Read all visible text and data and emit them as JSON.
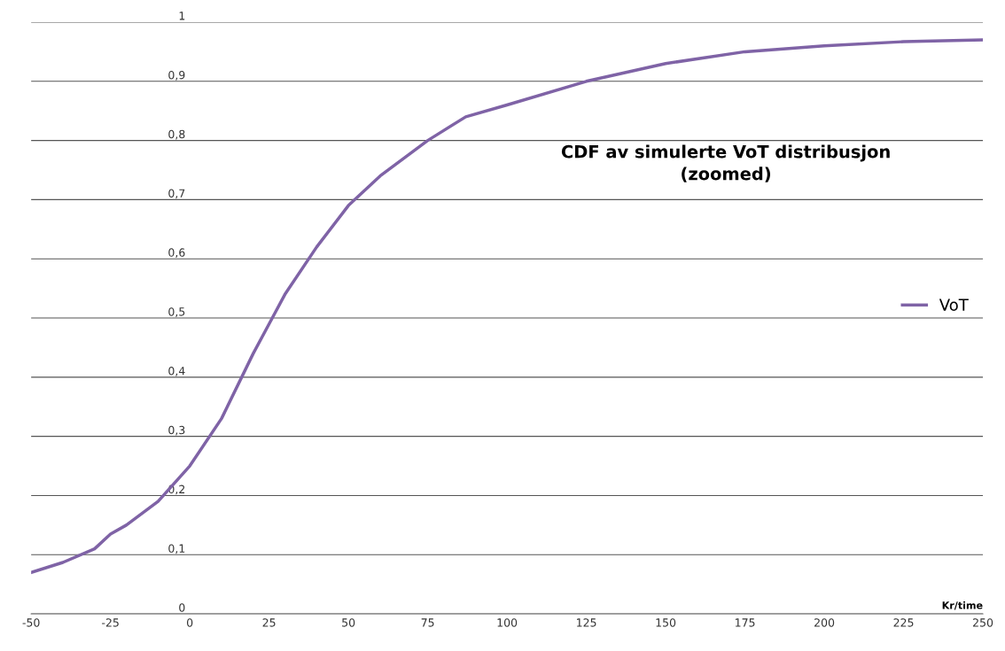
{
  "chart_data": {
    "type": "line",
    "title": "CDF av simulerte VoT distribusjon\n(zoomed)",
    "xlabel": "Kr/time",
    "x": [
      -50,
      -40,
      -30,
      -25,
      -20,
      -10,
      0,
      10,
      20,
      25,
      30,
      40,
      50,
      60,
      75,
      87,
      100,
      125,
      150,
      175,
      200,
      225,
      250
    ],
    "series": [
      {
        "name": "VoT",
        "color": "#7f63a6",
        "values": [
          0.07,
          0.087,
          0.11,
          0.135,
          0.15,
          0.19,
          0.25,
          0.33,
          0.44,
          0.49,
          0.54,
          0.62,
          0.69,
          0.74,
          0.8,
          0.84,
          0.86,
          0.9,
          0.93,
          0.95,
          0.96,
          0.967,
          0.97
        ]
      }
    ],
    "xlim": [
      -50,
      250
    ],
    "xticks": [
      -50,
      -25,
      0,
      25,
      50,
      75,
      100,
      125,
      150,
      175,
      200,
      225,
      250
    ],
    "ylim": [
      0,
      1
    ],
    "yticks": [
      0,
      {
        "value": 0.1,
        "label": "0,1"
      },
      {
        "value": 0.2,
        "label": "0,2"
      },
      {
        "value": 0.3,
        "label": "0,3"
      },
      {
        "value": 0.4,
        "label": "0,4"
      },
      {
        "value": 0.5,
        "label": "0,5"
      },
      {
        "value": 0.6,
        "label": "0,6"
      },
      {
        "value": 0.7,
        "label": "0,7"
      },
      {
        "value": 0.8,
        "label": "0,8"
      },
      {
        "value": 0.9,
        "label": "0,9"
      },
      1
    ],
    "grid": "y",
    "legend": "right",
    "marker": "none",
    "line_style": "solid"
  }
}
